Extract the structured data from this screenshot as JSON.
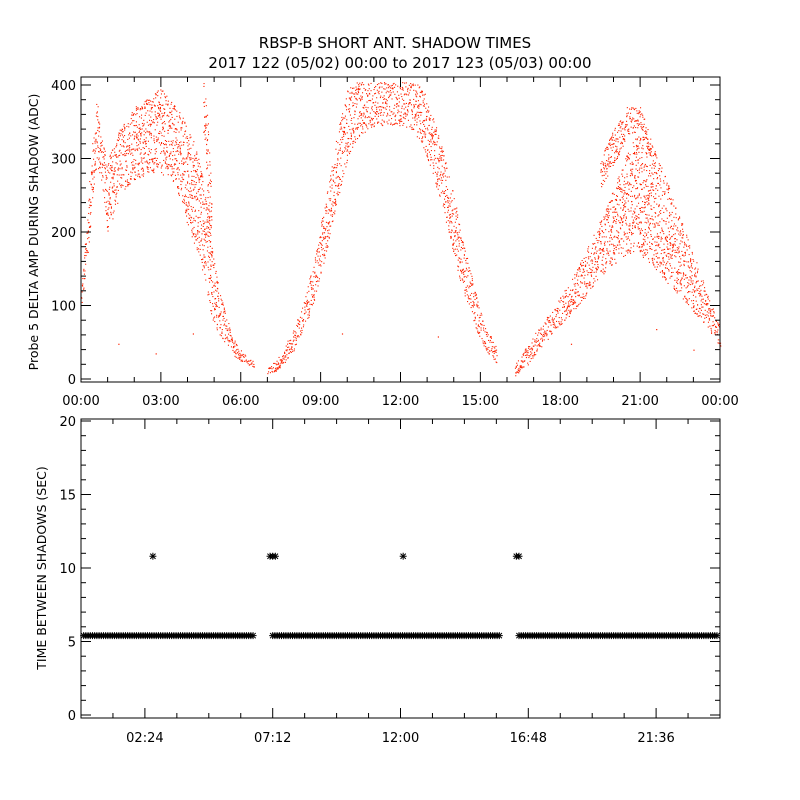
{
  "header": {
    "title_line1": "RBSP-B SHORT ANT. SHADOW TIMES",
    "title_line2": "2017 122 (05/02) 00:00 to 2017 123 (05/03) 00:00"
  },
  "colors": {
    "amp_points": "#ff2200",
    "shadow_markers": "#000000",
    "axes": "#000000",
    "background": "#ffffff"
  },
  "chart_data": [
    {
      "type": "scatter",
      "name": "amplitude",
      "title": "",
      "ylabel": "Probe 5 DELTA AMP DURING SHADOW (ADC)",
      "xlabel": "",
      "xlim_hours": [
        0,
        24
      ],
      "ylim": [
        0,
        400
      ],
      "x_ticks_hours": [
        0,
        3,
        6,
        9,
        12,
        15,
        18,
        21,
        24
      ],
      "x_tick_labels": [
        "00:00",
        "03:00",
        "06:00",
        "09:00",
        "12:00",
        "15:00",
        "18:00",
        "21:00",
        "00:00"
      ],
      "y_ticks": [
        0,
        100,
        200,
        300,
        400
      ],
      "y_tick_labels": [
        "0",
        "100",
        "200",
        "300",
        "400"
      ],
      "grid": false,
      "marker": "dot",
      "bands": [
        {
          "x": [
            0.0,
            0.2,
            0.4,
            0.5,
            0.6,
            0.8,
            1.0,
            1.2,
            1.5,
            2.0,
            2.5,
            3.0,
            3.4,
            3.8,
            4.0,
            4.3,
            4.6,
            4.9,
            5.2,
            5.5,
            5.8,
            6.1,
            6.5
          ],
          "low": [
            95,
            150,
            230,
            270,
            290,
            260,
            200,
            220,
            255,
            270,
            280,
            280,
            270,
            240,
            210,
            180,
            140,
            80,
            60,
            45,
            30,
            22,
            15
          ],
          "high": [
            120,
            210,
            320,
            340,
            385,
            320,
            300,
            320,
            345,
            370,
            385,
            395,
            380,
            360,
            340,
            320,
            270,
            180,
            120,
            80,
            50,
            35,
            25
          ]
        },
        {
          "x": [
            4.6,
            4.75,
            4.9
          ],
          "low": [
            320,
            240,
            160
          ],
          "high": [
            405,
            360,
            260
          ]
        },
        {
          "x": [
            7.0,
            7.3,
            7.6,
            8.0,
            8.4,
            8.8,
            9.2,
            9.6,
            10.0,
            10.4,
            10.8,
            11.2,
            11.6,
            12.0,
            12.4,
            12.8,
            13.2,
            13.6,
            14.0,
            14.4,
            14.8,
            15.2,
            15.6
          ],
          "low": [
            5,
            10,
            20,
            40,
            70,
            110,
            170,
            240,
            300,
            330,
            340,
            345,
            345,
            345,
            340,
            320,
            280,
            230,
            170,
            110,
            70,
            40,
            20
          ],
          "high": [
            15,
            25,
            40,
            70,
            110,
            170,
            250,
            330,
            395,
            405,
            405,
            405,
            405,
            405,
            405,
            400,
            360,
            310,
            250,
            180,
            120,
            70,
            45
          ]
        },
        {
          "x": [
            16.3,
            16.8,
            17.3,
            17.8,
            18.3,
            18.8,
            19.3,
            19.8,
            20.3,
            20.8,
            21.3,
            21.8,
            22.3,
            22.8,
            23.3,
            23.7,
            24.0
          ],
          "low": [
            5,
            20,
            45,
            65,
            85,
            105,
            130,
            150,
            165,
            175,
            160,
            140,
            120,
            100,
            80,
            60,
            45
          ],
          "high": [
            20,
            50,
            75,
            100,
            130,
            165,
            200,
            240,
            290,
            330,
            330,
            290,
            240,
            190,
            140,
            100,
            70
          ]
        },
        {
          "x": [
            19.5,
            20.0,
            20.5,
            21.0,
            21.4
          ],
          "low": [
            260,
            290,
            330,
            340,
            300
          ],
          "high": [
            300,
            340,
            370,
            370,
            330
          ]
        }
      ],
      "outliers": [
        {
          "x": 1.4,
          "y": 48
        },
        {
          "x": 2.8,
          "y": 35
        },
        {
          "x": 4.2,
          "y": 62
        },
        {
          "x": 5.1,
          "y": 75
        },
        {
          "x": 9.8,
          "y": 62
        },
        {
          "x": 13.4,
          "y": 58
        },
        {
          "x": 18.4,
          "y": 48
        },
        {
          "x": 21.6,
          "y": 68
        },
        {
          "x": 23.0,
          "y": 40
        }
      ]
    },
    {
      "type": "scatter",
      "name": "shadow-interval",
      "title": "",
      "ylabel": "TIME BETWEEN SHADOWS (SEC)",
      "xlabel": "",
      "xlim_hours": [
        0,
        24
      ],
      "ylim": [
        0,
        20
      ],
      "x_ticks_hours": [
        2.4,
        7.2,
        12.0,
        16.8,
        21.6
      ],
      "x_tick_labels": [
        "02:24",
        "07:12",
        "12:00",
        "16:48",
        "21:36"
      ],
      "y_ticks": [
        0,
        5,
        10,
        15,
        20
      ],
      "y_tick_labels": [
        "0",
        "5",
        "10",
        "15",
        "20"
      ],
      "grid": false,
      "marker": "asterisk",
      "baseline_value": 5.4,
      "baseline_segments": [
        [
          0.1,
          6.5
        ],
        [
          7.2,
          15.75
        ],
        [
          16.45,
          23.95
        ]
      ],
      "spikes": [
        {
          "x": 2.7,
          "y": 10.8
        },
        {
          "x": 7.1,
          "y": 10.8
        },
        {
          "x": 7.2,
          "y": 10.8
        },
        {
          "x": 7.3,
          "y": 10.8
        },
        {
          "x": 12.1,
          "y": 10.8
        },
        {
          "x": 16.35,
          "y": 10.8
        },
        {
          "x": 16.45,
          "y": 10.8
        }
      ]
    }
  ]
}
